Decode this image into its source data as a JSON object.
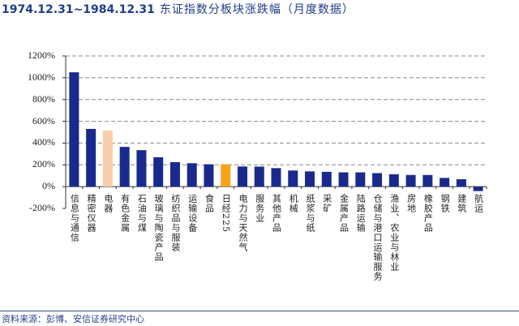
{
  "title": {
    "date_range": "1974.12.31~1984.12.31",
    "text": "东证指数分板块涨跌幅（月度数据）"
  },
  "footer": "资料来源：彭博、安信证券研究中心",
  "chart_data": {
    "type": "bar",
    "title": "1974.12.31~1984.12.31 东证指数分板块涨跌幅（月度数据）",
    "xlabel": "",
    "ylabel": "",
    "ylim": [
      -200,
      1200
    ],
    "yticks": [
      "1200%",
      "1000%",
      "800%",
      "600%",
      "400%",
      "200%",
      "0%",
      "-200%"
    ],
    "ytick_values": [
      1200,
      1000,
      800,
      600,
      400,
      200,
      0,
      -200
    ],
    "grid": "horizontal dashed",
    "categories": [
      "信息与通信",
      "精密仪器",
      "电器",
      "有色金属",
      "石油与煤",
      "玻璃与陶瓷产品",
      "纺织品与服装",
      "运输设备",
      "食品",
      "日经225",
      "电力与天然气",
      "服务业",
      "其他产品",
      "机械",
      "纸浆与纸",
      "采矿",
      "金属产品",
      "陆路运输",
      "仓储与港口运输服务",
      "渔业、农业与林业",
      "房地",
      "橡胶产品",
      "钢铁",
      "建筑",
      "航运"
    ],
    "values": [
      1050,
      530,
      515,
      365,
      335,
      270,
      225,
      215,
      205,
      205,
      185,
      184,
      170,
      148,
      140,
      136,
      131,
      131,
      124,
      114,
      107,
      107,
      80,
      68,
      -41
    ],
    "colors": {
      "default": "#1a2a8c",
      "电器": "#f8cfa8",
      "日经225": "#f7a21b"
    }
  }
}
